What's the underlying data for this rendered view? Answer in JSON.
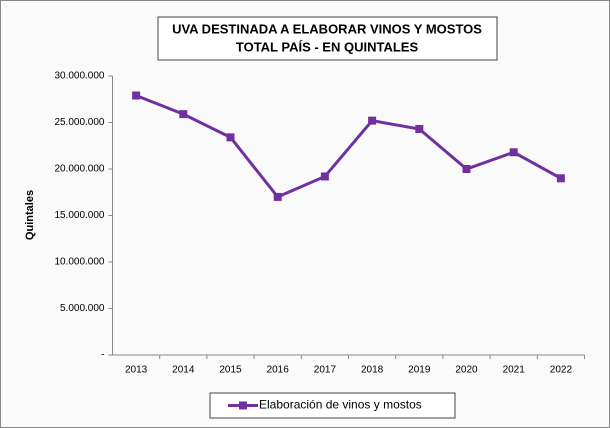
{
  "chart_data": {
    "type": "line",
    "title": [
      "UVA DESTINADA A ELABORAR VINOS Y MOSTOS",
      "TOTAL PAÍS - EN QUINTALES"
    ],
    "y_label": "Quintales",
    "categories": [
      "2013",
      "2014",
      "2015",
      "2016",
      "2017",
      "2018",
      "2019",
      "2020",
      "2021",
      "2022"
    ],
    "series": [
      {
        "name": "Elaboración de vinos y mostos",
        "color": "#7030a0",
        "values": [
          27900000,
          25900000,
          23400000,
          17000000,
          19200000,
          25200000,
          24300000,
          20000000,
          21800000,
          19000000
        ]
      }
    ],
    "ylim": [
      0,
      30000000
    ],
    "yticks": [
      {
        "value": 0,
        "label": "-"
      },
      {
        "value": 5000000,
        "label": "5.000.000"
      },
      {
        "value": 10000000,
        "label": "10.000.000"
      },
      {
        "value": 15000000,
        "label": "15.000.000"
      },
      {
        "value": 20000000,
        "label": "20.000.000"
      },
      {
        "value": 25000000,
        "label": "25.000.000"
      },
      {
        "value": 30000000,
        "label": "30.000.000"
      }
    ],
    "legend": "bottom"
  }
}
